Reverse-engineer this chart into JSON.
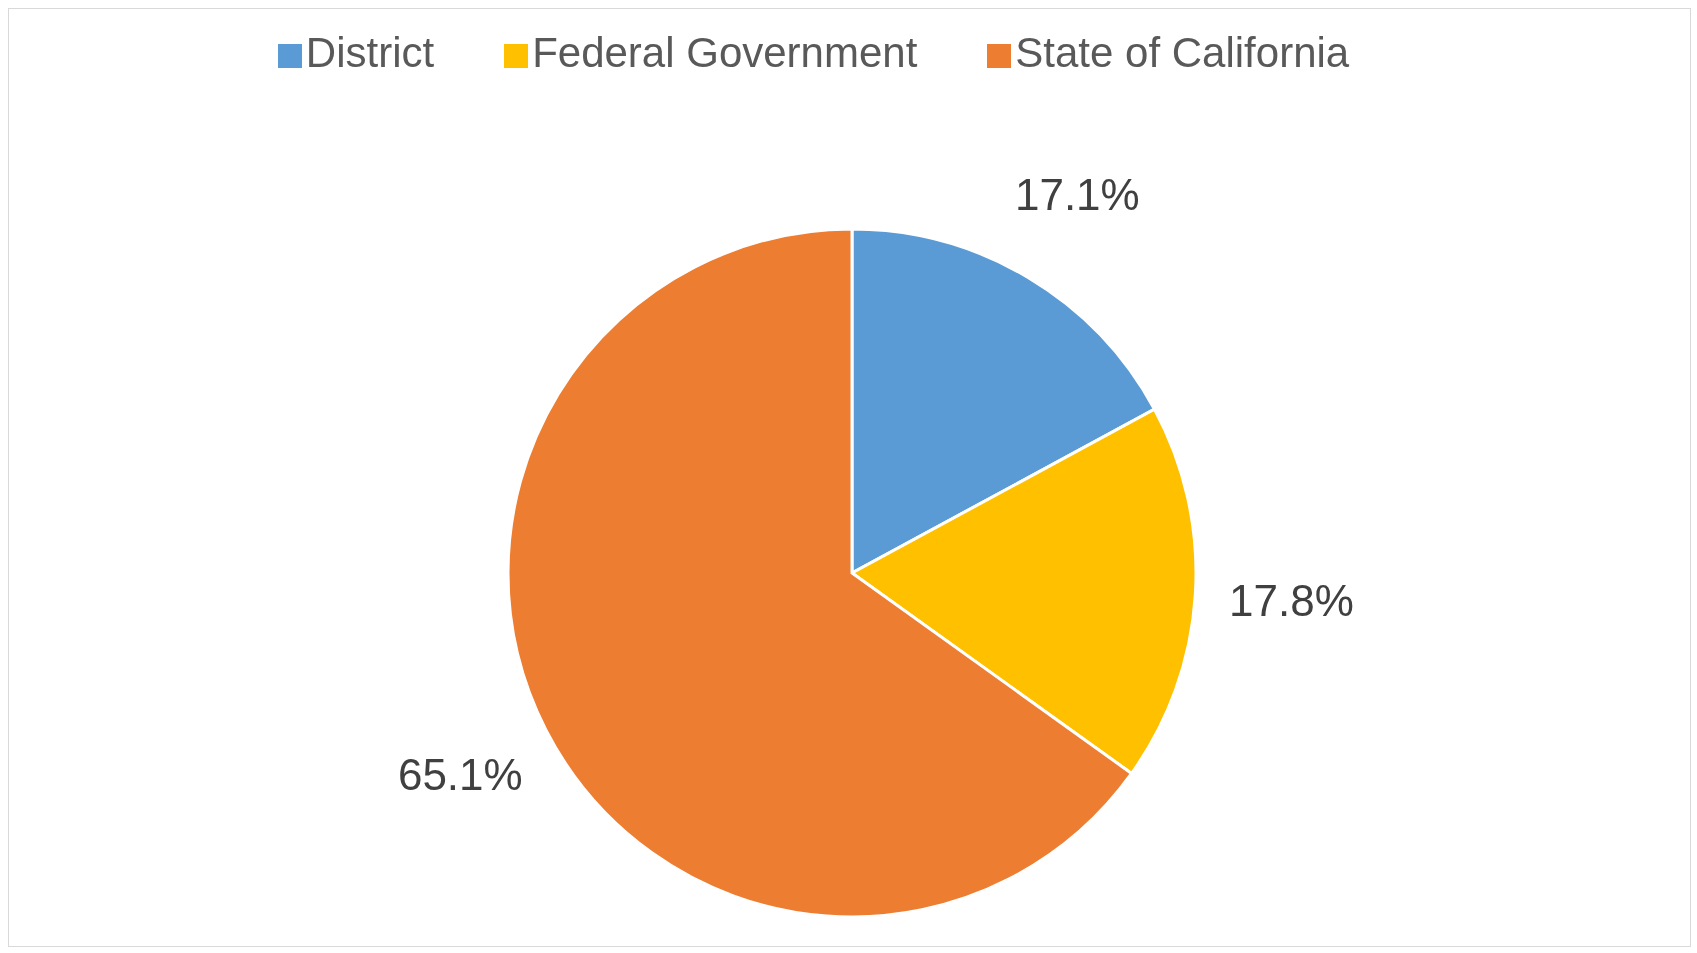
{
  "chart_data": {
    "type": "pie",
    "categories": [
      "District",
      "Federal Government",
      "State of California"
    ],
    "values": [
      17.1,
      17.8,
      65.1
    ],
    "colors": [
      "#5b9bd5",
      "#ffc000",
      "#ed7d31"
    ],
    "value_labels": [
      "17.1%",
      "17.8%",
      "65.1%"
    ],
    "legend": "top"
  }
}
